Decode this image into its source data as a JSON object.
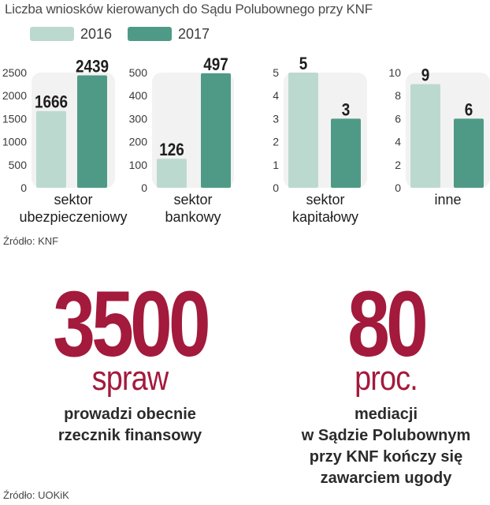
{
  "title": "Liczba wniosków kierowanych do Sądu Polubownego przy KNF",
  "legend": [
    {
      "label": "2016",
      "color": "#bcd9d0"
    },
    {
      "label": "2017",
      "color": "#4f9a86"
    }
  ],
  "chart_data": [
    {
      "type": "bar",
      "categories": [
        "2016",
        "2017"
      ],
      "values": [
        1666,
        2439
      ],
      "ylim": [
        0,
        2500
      ],
      "yticks": [
        0,
        500,
        1000,
        1500,
        2000,
        2500
      ],
      "xlabel": [
        "sektor",
        "ubezpieczeniowy"
      ]
    },
    {
      "type": "bar",
      "categories": [
        "2016",
        "2017"
      ],
      "values": [
        126,
        497
      ],
      "ylim": [
        0,
        500
      ],
      "yticks": [
        0,
        100,
        200,
        300,
        400,
        500
      ],
      "xlabel": [
        "sektor",
        "bankowy"
      ]
    },
    {
      "type": "bar",
      "categories": [
        "2016",
        "2017"
      ],
      "values": [
        5,
        3
      ],
      "ylim": [
        0,
        5
      ],
      "yticks": [
        0,
        1,
        2,
        3,
        4,
        5
      ],
      "xlabel": [
        "sektor",
        "kapitałowy"
      ]
    },
    {
      "type": "bar",
      "categories": [
        "2016",
        "2017"
      ],
      "values": [
        9,
        6
      ],
      "ylim": [
        0,
        10
      ],
      "yticks": [
        0,
        2,
        4,
        6,
        8,
        10
      ],
      "xlabel": [
        "inne"
      ]
    }
  ],
  "source1": "Źródło: KNF",
  "stats": [
    {
      "value": "3500",
      "unit": "spraw",
      "desc": [
        "prowadzi obecnie",
        "rzecznik finansowy"
      ]
    },
    {
      "value": "80",
      "unit": "proc.",
      "desc": [
        "mediacji",
        "w Sądzie Polubownym",
        "przy KNF kończy się",
        "zawarciem ugody"
      ]
    }
  ],
  "source2": "Źródło: UOKiK",
  "colors": {
    "bar2016": "#bcd9d0",
    "bar2017": "#4f9a86",
    "panel": "#f2f2f2",
    "accent": "#a31a3c"
  }
}
